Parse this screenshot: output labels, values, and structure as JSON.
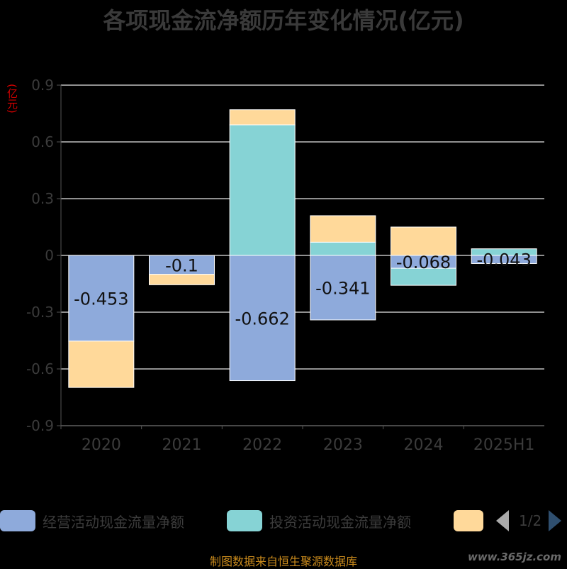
{
  "title": "各项现金流净额历年变化情况(亿元)",
  "unit_label": "(亿元)",
  "source": "制图数据来自恒生聚源数据库",
  "watermark": "www.365jz.com",
  "pager": {
    "text": "1/2"
  },
  "legend": [
    {
      "label": "经营活动现金流量净额",
      "color": "#8eaadb"
    },
    {
      "label": "投资活动现金流量净额",
      "color": "#86d3d5"
    },
    {
      "label": "",
      "color": "#ffd99a"
    }
  ],
  "chart_data": {
    "type": "bar",
    "stacked": true,
    "categories": [
      "2020",
      "2021",
      "2022",
      "2023",
      "2024",
      "2025H1"
    ],
    "ylim": [
      -0.9,
      0.9
    ],
    "yticks": [
      0.9,
      0.6,
      0.3,
      0,
      -0.3,
      -0.6,
      -0.9
    ],
    "ytick_labels": [
      "0.9",
      "0.6",
      "0.3",
      "0",
      "-0.3",
      "-0.6",
      "-0.9"
    ],
    "series": [
      {
        "name": "经营活动现金流量净额",
        "color": "#8eaadb",
        "values": [
          -0.453,
          -0.1,
          -0.662,
          -0.341,
          -0.068,
          -0.043
        ],
        "labels": [
          "-0.453",
          "-0.1",
          "-0.662",
          "-0.341",
          "-0.068",
          "-0.043"
        ]
      },
      {
        "name": "投资活动现金流量净额",
        "color": "#86d3d5",
        "values": [
          0,
          0,
          0.69,
          0.07,
          -0.09,
          0.035
        ]
      },
      {
        "name": "",
        "color": "#ffd99a",
        "values": [
          -0.245,
          -0.055,
          0.08,
          0.14,
          0.15,
          0
        ]
      }
    ]
  }
}
